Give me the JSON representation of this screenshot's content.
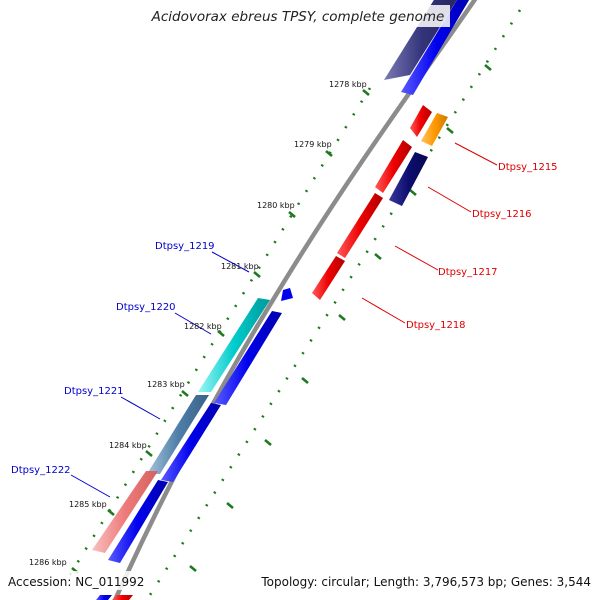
{
  "title": "Acidovorax ebreus TPSY, complete genome",
  "footer": {
    "accession": "Accession: NC_011992",
    "summary": "Topology: circular; Length: 3,796,573 bp; Genes: 3,544"
  },
  "colors": {
    "backbone": "#8c8c8c",
    "tick": "#1e7a1e",
    "forward_label": "#0000cc",
    "reverse_label": "#dd0000"
  },
  "kbp_ticks": [
    "1278 kbp",
    "1279 kbp",
    "1280 kbp",
    "1281 kbp",
    "1282 kbp",
    "1283 kbp",
    "1284 kbp",
    "1285 kbp",
    "1286 kbp"
  ],
  "gene_labels": {
    "reverse": [
      "Dtpsy_1215",
      "Dtpsy_1216",
      "Dtpsy_1217",
      "Dtpsy_1218"
    ],
    "forward": [
      "Dtpsy_1219",
      "Dtpsy_1220",
      "Dtpsy_1221",
      "Dtpsy_1222"
    ]
  },
  "features": {
    "reverse_inner": [
      {
        "color": "#ee0000",
        "strand": "reverse"
      },
      {
        "color": "#ee0000",
        "strand": "reverse"
      },
      {
        "color": "#ee0000",
        "strand": "reverse"
      },
      {
        "color": "#ee0000",
        "strand": "reverse"
      },
      {
        "color": "#ee0000",
        "strand": "reverse"
      }
    ],
    "reverse_outer": [
      {
        "color": "#ff9900",
        "strand": "reverse"
      },
      {
        "color": "#0d0d70",
        "strand": "reverse"
      }
    ],
    "forward_inner": [
      {
        "color": "#0000ee",
        "strand": "forward"
      },
      {
        "color": "#0000ee",
        "strand": "forward"
      },
      {
        "color": "#0000ee",
        "strand": "forward"
      },
      {
        "color": "#0000ee",
        "strand": "forward"
      },
      {
        "color": "#0000ee",
        "strand": "forward"
      },
      {
        "color": "#0000ee",
        "strand": "forward"
      }
    ],
    "forward_outer": [
      {
        "color": "#33337a",
        "strand": "forward"
      },
      {
        "color": "#00cccc",
        "strand": "forward"
      },
      {
        "color": "#4f7fa8",
        "strand": "forward"
      },
      {
        "color": "#ee7b7b",
        "strand": "forward"
      }
    ]
  }
}
